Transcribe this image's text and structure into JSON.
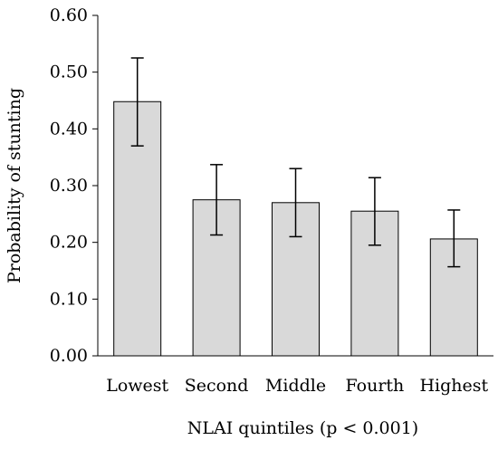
{
  "chart_data": {
    "type": "bar",
    "categories": [
      "Lowest",
      "Second",
      "Middle",
      "Fourth",
      "Highest"
    ],
    "values": [
      0.448,
      0.275,
      0.27,
      0.255,
      0.206
    ],
    "error_low": [
      0.37,
      0.213,
      0.21,
      0.195,
      0.157
    ],
    "error_high": [
      0.525,
      0.337,
      0.33,
      0.314,
      0.257
    ],
    "xlabel": "NLAI quintiles (p < 0.001)",
    "ylabel": "Probability of stunting",
    "ylim": [
      0,
      0.6
    ],
    "yticks": [
      "0.00",
      "0.10",
      "0.20",
      "0.30",
      "0.40",
      "0.50",
      "0.60"
    ],
    "bar_color": "#d9d9d9",
    "grid": false
  }
}
